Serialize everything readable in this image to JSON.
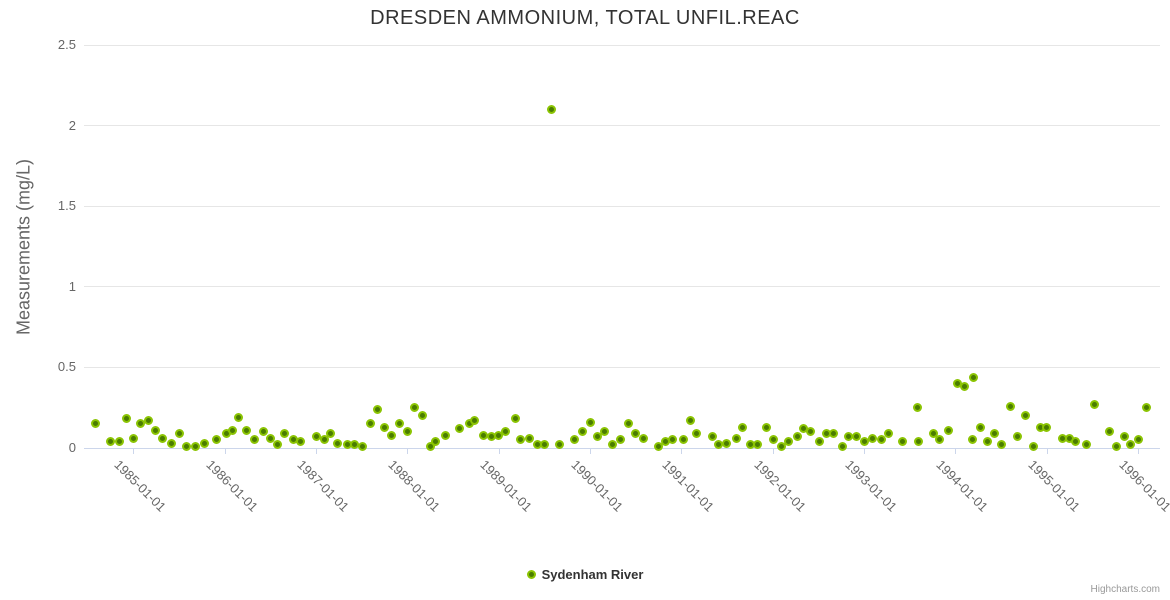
{
  "chart": {
    "credits": "Highcharts.com"
  },
  "colors": {
    "background": "#ffffff",
    "marker_core": "#4a7c01",
    "marker_ring": "#8bc403",
    "grid_line": "#e6e6e6",
    "axis_line": "#ccd6eb",
    "title_text": "#333333",
    "axis_text": "#666666",
    "legend_text": "#333333",
    "credits_text": "#999999"
  },
  "chart_data": {
    "type": "scatter",
    "title": "DRESDEN AMMONIUM, TOTAL UNFIL.REAC",
    "xlabel": "",
    "ylabel": "Measurements (mg/L)",
    "ylim": [
      0,
      2.5
    ],
    "yticks": [
      0,
      0.5,
      1,
      1.5,
      2,
      2.5
    ],
    "ytick_labels": [
      "0",
      "0.5",
      "1",
      "1.5",
      "2",
      "2.5"
    ],
    "xlim": [
      1984.46,
      1996.24
    ],
    "x_unit": "decimal_year",
    "xtick_values": [
      1985,
      1986,
      1987,
      1988,
      1989,
      1990,
      1991,
      1992,
      1993,
      1994,
      1995,
      1996
    ],
    "xtick_labels": [
      "1985-01-01",
      "1986-01-01",
      "1987-01-01",
      "1988-01-01",
      "1989-01-01",
      "1990-01-01",
      "1991-01-01",
      "1992-01-01",
      "1993-01-01",
      "1994-01-01",
      "1995-01-01",
      "1996-01-01"
    ],
    "grid": true,
    "legend_position": "bottom-center",
    "series": [
      {
        "name": "Sydenham River",
        "points": [
          [
            1984.59,
            0.15
          ],
          [
            1984.75,
            0.04
          ],
          [
            1984.85,
            0.04
          ],
          [
            1984.92,
            0.18
          ],
          [
            1985.0,
            0.06
          ],
          [
            1985.08,
            0.15
          ],
          [
            1985.17,
            0.17
          ],
          [
            1985.24,
            0.11
          ],
          [
            1985.32,
            0.06
          ],
          [
            1985.42,
            0.03
          ],
          [
            1985.51,
            0.09
          ],
          [
            1985.58,
            0.01
          ],
          [
            1985.68,
            0.01
          ],
          [
            1985.78,
            0.03
          ],
          [
            1985.91,
            0.05
          ],
          [
            1986.02,
            0.09
          ],
          [
            1986.09,
            0.11
          ],
          [
            1986.15,
            0.19
          ],
          [
            1986.24,
            0.11
          ],
          [
            1986.33,
            0.05
          ],
          [
            1986.42,
            0.1
          ],
          [
            1986.5,
            0.06
          ],
          [
            1986.58,
            0.02
          ],
          [
            1986.66,
            0.09
          ],
          [
            1986.75,
            0.05
          ],
          [
            1986.83,
            0.04
          ],
          [
            1987.0,
            0.07
          ],
          [
            1987.09,
            0.05
          ],
          [
            1987.16,
            0.09
          ],
          [
            1987.23,
            0.03
          ],
          [
            1987.34,
            0.02
          ],
          [
            1987.42,
            0.02
          ],
          [
            1987.51,
            0.01
          ],
          [
            1987.6,
            0.15
          ],
          [
            1987.67,
            0.24
          ],
          [
            1987.75,
            0.13
          ],
          [
            1987.83,
            0.08
          ],
          [
            1987.91,
            0.15
          ],
          [
            1988.0,
            0.1
          ],
          [
            1988.08,
            0.25
          ],
          [
            1988.17,
            0.2
          ],
          [
            1988.25,
            0.01
          ],
          [
            1988.31,
            0.04
          ],
          [
            1988.42,
            0.08
          ],
          [
            1988.57,
            0.12
          ],
          [
            1988.68,
            0.15
          ],
          [
            1988.74,
            0.17
          ],
          [
            1988.83,
            0.08
          ],
          [
            1988.92,
            0.07
          ],
          [
            1989.0,
            0.08
          ],
          [
            1989.08,
            0.1
          ],
          [
            1989.18,
            0.18
          ],
          [
            1989.24,
            0.05
          ],
          [
            1989.34,
            0.06
          ],
          [
            1989.42,
            0.02
          ],
          [
            1989.5,
            0.02
          ],
          [
            1989.58,
            2.1
          ],
          [
            1989.67,
            0.02
          ],
          [
            1989.83,
            0.05
          ],
          [
            1989.92,
            0.1
          ],
          [
            1990.0,
            0.16
          ],
          [
            1990.08,
            0.07
          ],
          [
            1990.16,
            0.1
          ],
          [
            1990.25,
            0.02
          ],
          [
            1990.33,
            0.05
          ],
          [
            1990.42,
            0.15
          ],
          [
            1990.5,
            0.09
          ],
          [
            1990.59,
            0.06
          ],
          [
            1990.75,
            0.01
          ],
          [
            1990.83,
            0.04
          ],
          [
            1990.9,
            0.05
          ],
          [
            1991.02,
            0.05
          ],
          [
            1991.1,
            0.17
          ],
          [
            1991.17,
            0.09
          ],
          [
            1991.34,
            0.07
          ],
          [
            1991.41,
            0.02
          ],
          [
            1991.49,
            0.03
          ],
          [
            1991.6,
            0.06
          ],
          [
            1991.67,
            0.13
          ],
          [
            1991.76,
            0.02
          ],
          [
            1991.83,
            0.02
          ],
          [
            1991.93,
            0.13
          ],
          [
            1992.01,
            0.05
          ],
          [
            1992.1,
            0.01
          ],
          [
            1992.17,
            0.04
          ],
          [
            1992.27,
            0.07
          ],
          [
            1992.34,
            0.12
          ],
          [
            1992.41,
            0.1
          ],
          [
            1992.51,
            0.04
          ],
          [
            1992.59,
            0.09
          ],
          [
            1992.67,
            0.09
          ],
          [
            1992.76,
            0.01
          ],
          [
            1992.83,
            0.07
          ],
          [
            1992.92,
            0.07
          ],
          [
            1993.01,
            0.04
          ],
          [
            1993.09,
            0.06
          ],
          [
            1993.19,
            0.05
          ],
          [
            1993.27,
            0.09
          ],
          [
            1993.42,
            0.04
          ],
          [
            1993.59,
            0.25
          ],
          [
            1993.6,
            0.04
          ],
          [
            1993.76,
            0.09
          ],
          [
            1993.83,
            0.05
          ],
          [
            1993.92,
            0.11
          ],
          [
            1994.02,
            0.4
          ],
          [
            1994.1,
            0.38
          ],
          [
            1994.19,
            0.05
          ],
          [
            1994.2,
            0.44
          ],
          [
            1994.27,
            0.13
          ],
          [
            1994.35,
            0.04
          ],
          [
            1994.43,
            0.09
          ],
          [
            1994.51,
            0.02
          ],
          [
            1994.6,
            0.26
          ],
          [
            1994.68,
            0.07
          ],
          [
            1994.77,
            0.2
          ],
          [
            1994.86,
            0.01
          ],
          [
            1994.93,
            0.13
          ],
          [
            1995.0,
            0.13
          ],
          [
            1995.17,
            0.06
          ],
          [
            1995.25,
            0.06
          ],
          [
            1995.31,
            0.04
          ],
          [
            1995.43,
            0.02
          ],
          [
            1995.52,
            0.27
          ],
          [
            1995.69,
            0.1
          ],
          [
            1995.76,
            0.01
          ],
          [
            1995.85,
            0.07
          ],
          [
            1995.92,
            0.02
          ],
          [
            1996.01,
            0.05
          ],
          [
            1996.09,
            0.25
          ]
        ]
      }
    ]
  }
}
